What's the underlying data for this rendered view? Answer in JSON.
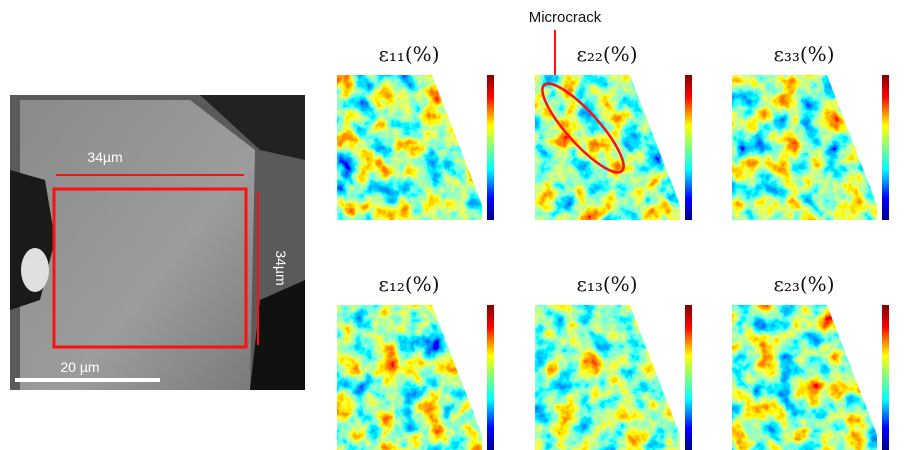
{
  "figure": {
    "sem_image": {
      "width_label": "34µm",
      "height_label": "34µm",
      "scale_bar": "20 µm"
    },
    "annotation": "Microcrack",
    "panels": [
      {
        "title": "ε₁₁(%)"
      },
      {
        "title": "ε₂₂(%)"
      },
      {
        "title": "ε₃₃(%)"
      },
      {
        "title": "ε₁₂(%)"
      },
      {
        "title": "ε₁₃(%)"
      },
      {
        "title": "ε₂₃(%)"
      }
    ]
  }
}
